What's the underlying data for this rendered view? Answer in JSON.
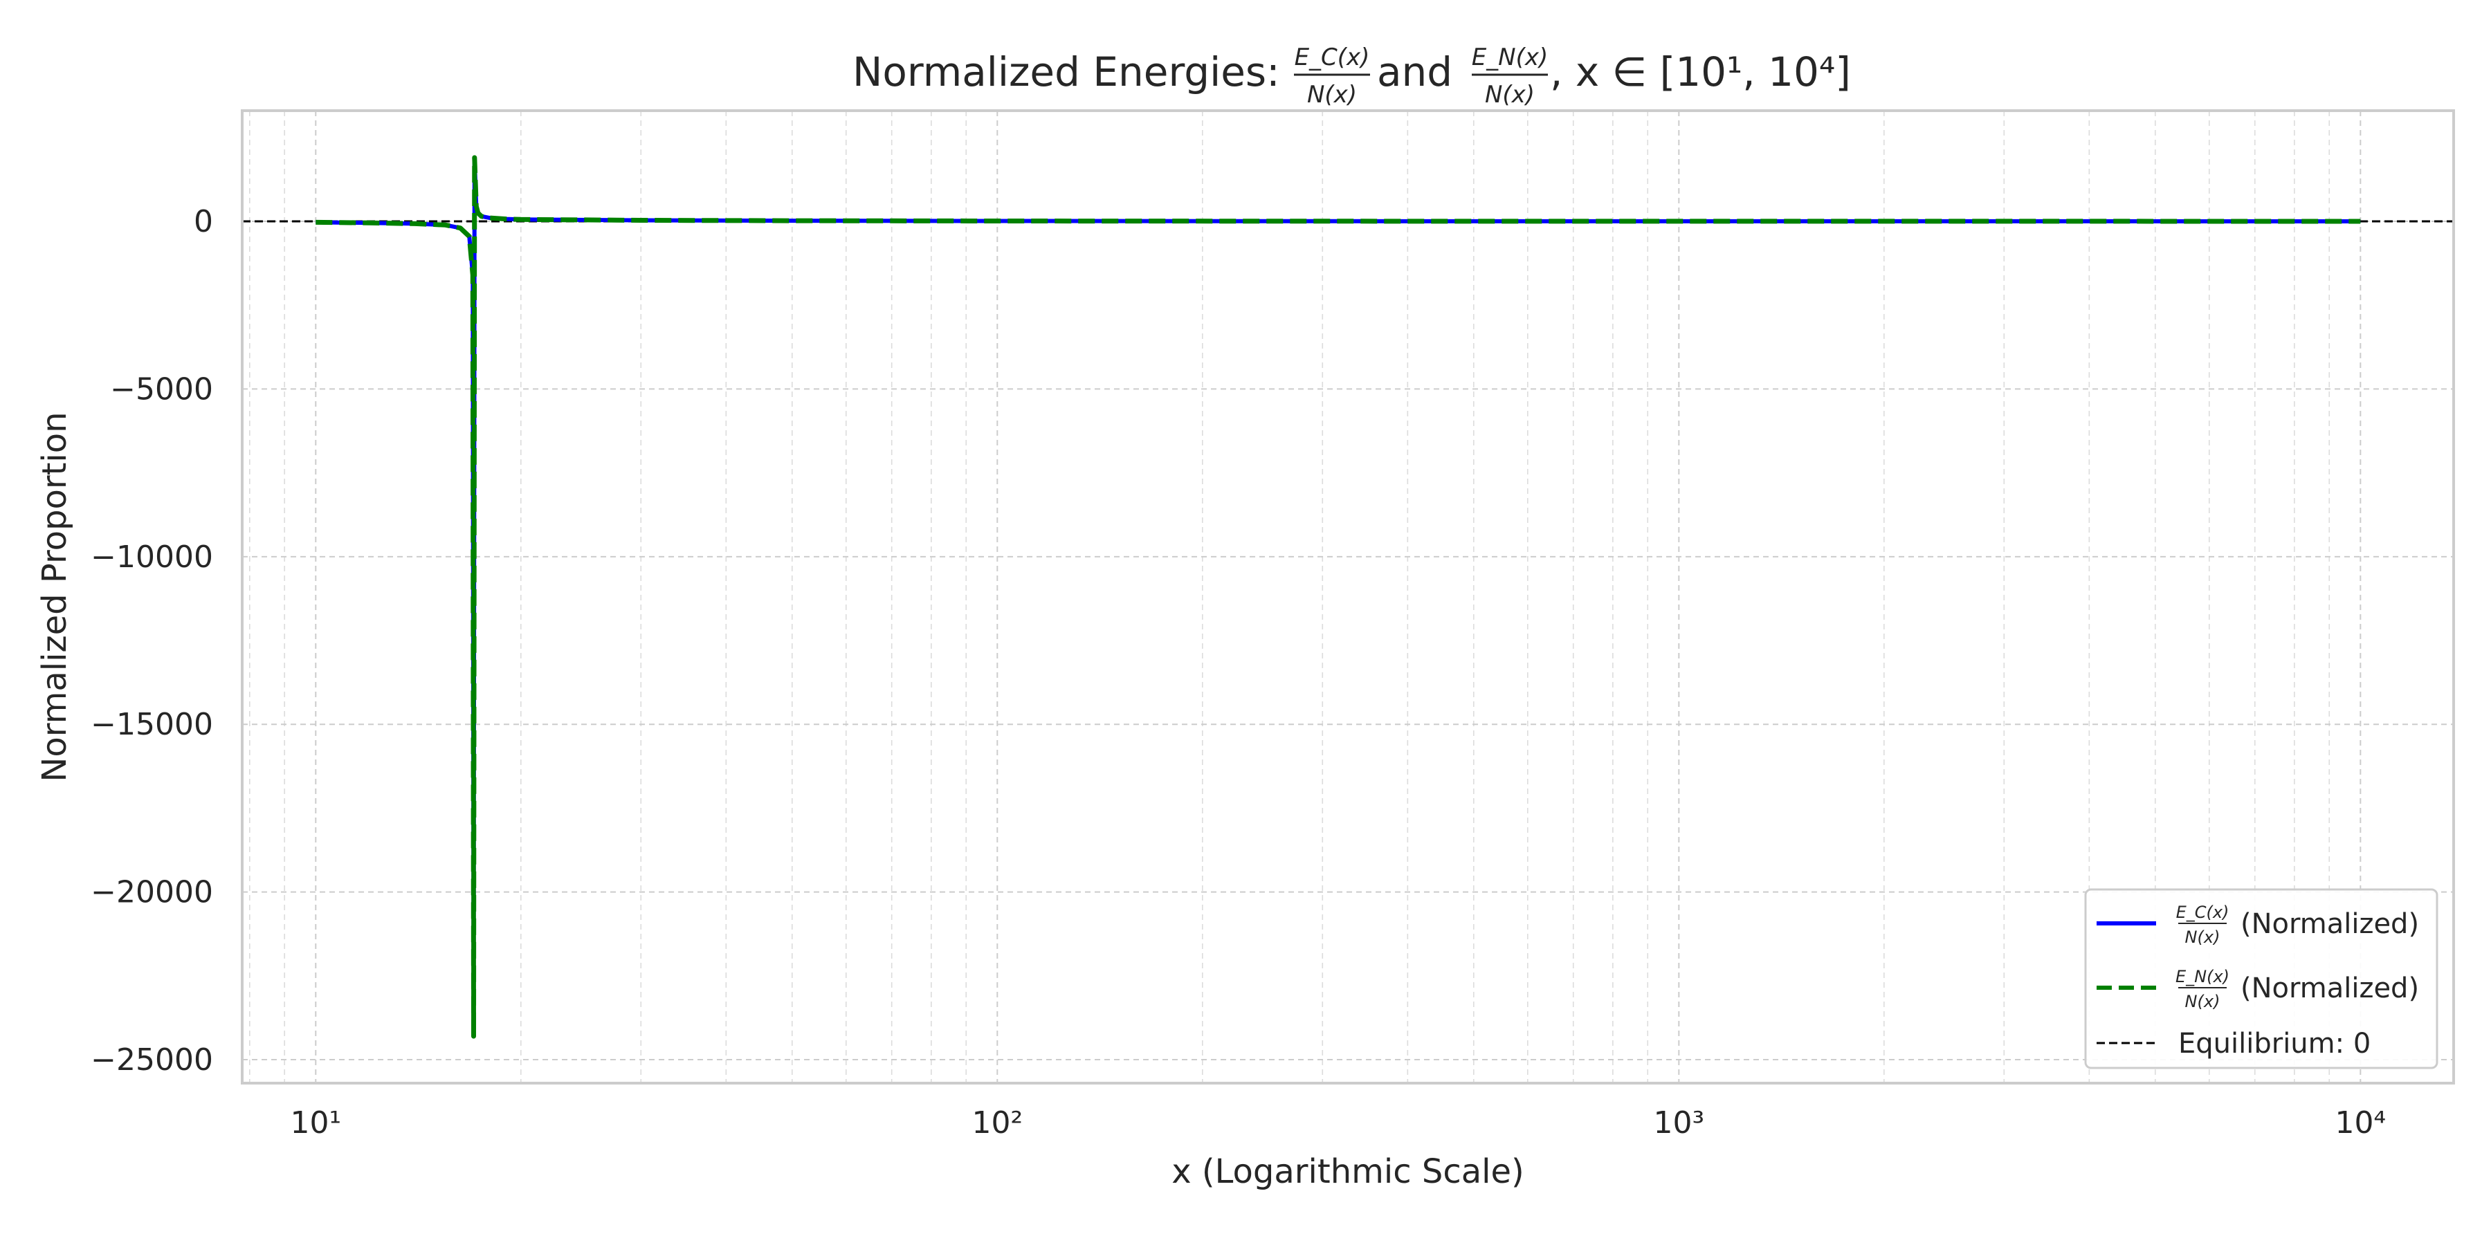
{
  "chart_data": {
    "type": "line",
    "title": {
      "prefix": "Normalized Energies: ",
      "frac1_num": "E_C(x)",
      "frac1_den": "N(x)",
      "join": " and ",
      "frac2_num": "E_N(x)",
      "frac2_den": "N(x)",
      "suffix": ", x ∈ [10¹, 10⁴]"
    },
    "xlabel": "x (Logarithmic Scale)",
    "ylabel": "Normalized Proportion",
    "x_scale": "log",
    "xlim": [
      7.8,
      13700
    ],
    "ylim": [
      -25700,
      3300
    ],
    "x_ticks": [
      {
        "value": 10,
        "label": "10¹"
      },
      {
        "value": 100,
        "label": "10²"
      },
      {
        "value": 1000,
        "label": "10³"
      },
      {
        "value": 10000,
        "label": "10⁴"
      }
    ],
    "y_ticks": [
      {
        "value": 0,
        "label": "0"
      },
      {
        "value": -5000,
        "label": "−5000"
      },
      {
        "value": -10000,
        "label": "−10000"
      },
      {
        "value": -15000,
        "label": "−15000"
      },
      {
        "value": -20000,
        "label": "−20000"
      },
      {
        "value": -25000,
        "label": "−25000"
      }
    ],
    "grid": true,
    "legend_position": "bottom-right",
    "series": [
      {
        "name": "E_C(x)/N(x) (Normalized)",
        "legend_num": "E_C(x)",
        "legend_den": "N(x)",
        "legend_suffix": "(Normalized)",
        "color": "#0000ff",
        "style": "solid",
        "x": [
          10,
          12,
          14,
          15.5,
          16.3,
          16.8,
          17.0,
          17.05,
          17.1,
          17.15,
          17.2,
          17.3,
          17.5,
          18,
          19,
          20,
          30,
          50,
          100,
          300,
          1000,
          3000,
          10000
        ],
        "y": [
          -30,
          -45,
          -70,
          -110,
          -200,
          -450,
          -1600,
          -24300,
          1900,
          1200,
          450,
          250,
          150,
          100,
          70,
          55,
          30,
          18,
          10,
          5,
          2,
          1,
          0
        ]
      },
      {
        "name": "E_N(x)/N(x) (Normalized)",
        "legend_num": "E_N(x)",
        "legend_den": "N(x)",
        "legend_suffix": "(Normalized)",
        "color": "#008000",
        "style": "dashed",
        "x": [
          10,
          12,
          14,
          15.5,
          16.3,
          16.8,
          17.0,
          17.05,
          17.1,
          17.15,
          17.2,
          17.3,
          17.5,
          18,
          19,
          20,
          30,
          50,
          100,
          300,
          1000,
          3000,
          10000
        ],
        "y": [
          -30,
          -45,
          -70,
          -110,
          -200,
          -450,
          -1600,
          -24300,
          1900,
          1200,
          450,
          250,
          150,
          100,
          70,
          55,
          30,
          18,
          10,
          5,
          2,
          1,
          0
        ]
      }
    ],
    "reference_line": {
      "name": "Equilibrium: 0",
      "y": 0,
      "color": "#000000",
      "style": "dashed"
    }
  }
}
